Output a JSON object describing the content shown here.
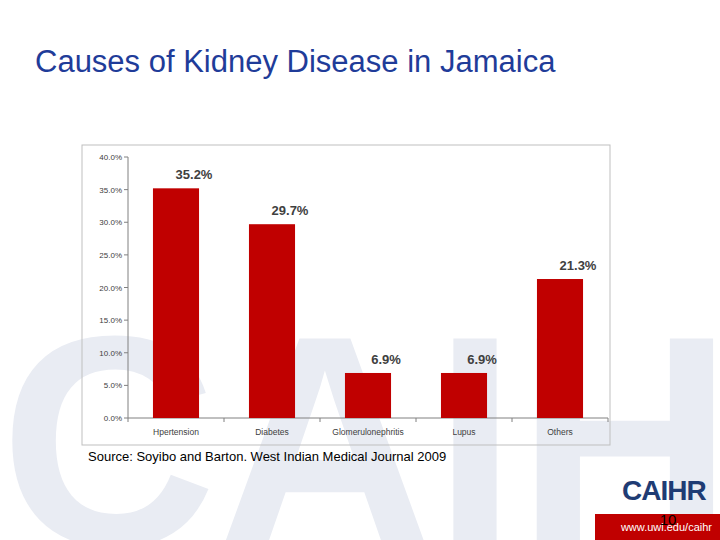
{
  "chart_data": {
    "type": "bar",
    "title": "Causes of Kidney Disease in Jamaica",
    "categories": [
      "Hpertension",
      "Diabetes",
      "Glomerulonephritis",
      "Lupus",
      "Others"
    ],
    "values": [
      35.2,
      29.7,
      6.9,
      6.9,
      21.3
    ],
    "value_labels": [
      "35.2%",
      "29.7%",
      "6.9%",
      "6.9%",
      "21.3%"
    ],
    "color": "#c00000",
    "ylim": [
      0,
      40
    ],
    "yticks": [
      {
        "value": 0,
        "label": "0.0%"
      },
      {
        "value": 5,
        "label": "5.0%"
      },
      {
        "value": 10,
        "label": "10.0%"
      },
      {
        "value": 15,
        "label": "15.0%"
      },
      {
        "value": 20,
        "label": "20.0%"
      },
      {
        "value": 25,
        "label": "25.0%"
      },
      {
        "value": 30,
        "label": "30.0%"
      },
      {
        "value": 35,
        "label": "35.0%"
      },
      {
        "value": 40,
        "label": "40.0%"
      }
    ],
    "grid": false,
    "data_labels": true
  },
  "footer": {
    "source": "Source: Soyibo and Barton. West Indian Medical Journal 2009",
    "logo": "CAIHR",
    "page": "10",
    "url": "www.uwi.edu/caihr"
  }
}
